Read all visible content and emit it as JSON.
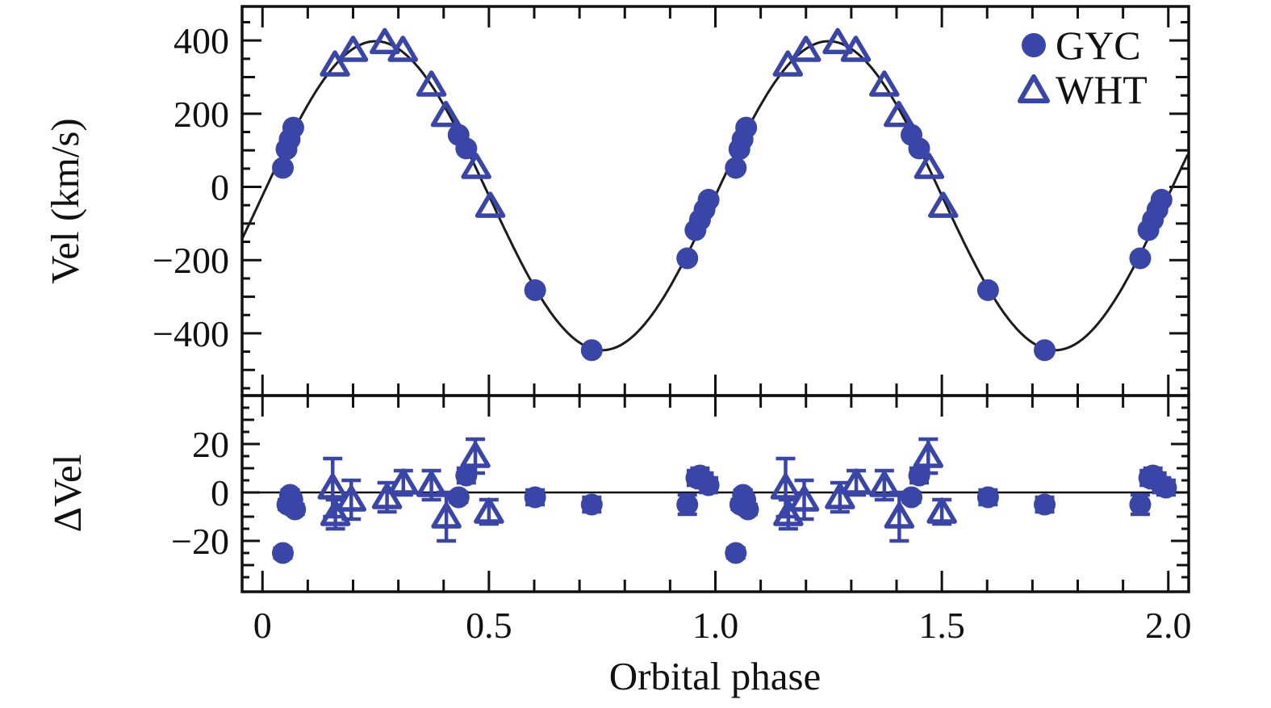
{
  "chart_data": {
    "type": "scatter",
    "description": "Radial velocity curve vs orbital phase with sinusoidal fit (top panel) and fit residuals (bottom panel)",
    "xlabel": "Orbital phase",
    "xlim": [
      -0.045,
      2.045
    ],
    "xticks": [
      {
        "v": 0,
        "label": "0"
      },
      {
        "v": 0.5,
        "label": "0.5"
      },
      {
        "v": 1.0,
        "label": "1.0"
      },
      {
        "v": 1.5,
        "label": "1.5"
      },
      {
        "v": 2.0,
        "label": "2.0"
      }
    ],
    "x_minor_step": 0.1,
    "x_major_step": 0.5,
    "grid": false,
    "legend_position": "top-right",
    "colors": {
      "marker": "#3a45a8",
      "curve": "#1c1c1c",
      "frame": "#111111"
    },
    "panels": [
      {
        "id": "velocity",
        "ylabel": "Vel (km/s)",
        "ylim": [
          -570,
          493
        ],
        "yticks": [
          {
            "v": 400,
            "label": "400"
          },
          {
            "v": 200,
            "label": "200"
          },
          {
            "v": 0,
            "label": "0"
          },
          {
            "v": -200,
            "label": "−200"
          },
          {
            "v": -400,
            "label": "−400"
          }
        ],
        "y_minor_step": 50,
        "y_medium_step": 100,
        "y_major_step": 200
      },
      {
        "id": "residuals",
        "ylabel": "ΔVel",
        "ylim": [
          -41,
          40
        ],
        "yticks": [
          {
            "v": 20,
            "label": "20"
          },
          {
            "v": 0,
            "label": "0"
          },
          {
            "v": -20,
            "label": "−20"
          }
        ],
        "y_minor_step": 5,
        "y_medium_step": 10,
        "y_major_step": 20,
        "zero_line": true
      }
    ],
    "fit_curve": {
      "model": "V = gamma + K * sin(2*pi*phase)",
      "gamma_kms": -24,
      "K_kms": 422
    },
    "series": [
      {
        "name": "GYC",
        "marker": "filled-circle",
        "color": "#3a45a8",
        "velocity_points": [
          [
            0.045,
            52
          ],
          [
            0.053,
            103
          ],
          [
            0.06,
            130
          ],
          [
            0.068,
            162
          ],
          [
            0.433,
            142
          ],
          [
            0.45,
            105
          ],
          [
            0.602,
            -282
          ],
          [
            0.727,
            -446
          ],
          [
            0.938,
            -195
          ],
          [
            0.956,
            -118
          ],
          [
            0.966,
            -90
          ],
          [
            0.976,
            -62
          ],
          [
            0.985,
            -35
          ],
          [
            1.045,
            52
          ],
          [
            1.053,
            103
          ],
          [
            1.06,
            130
          ],
          [
            1.068,
            162
          ],
          [
            1.433,
            142
          ],
          [
            1.45,
            105
          ],
          [
            1.602,
            -282
          ],
          [
            1.727,
            -446
          ],
          [
            1.938,
            -195
          ],
          [
            1.956,
            -118
          ],
          [
            1.966,
            -90
          ],
          [
            1.976,
            -62
          ],
          [
            1.985,
            -35
          ]
        ],
        "residual_points": [
          [
            0.045,
            -25,
            2
          ],
          [
            0.055,
            -5,
            2
          ],
          [
            0.061,
            -1,
            2
          ],
          [
            0.066,
            -3,
            2
          ],
          [
            0.072,
            -7,
            2
          ],
          [
            0.433,
            -2,
            2
          ],
          [
            0.45,
            7,
            3
          ],
          [
            0.602,
            -2,
            3
          ],
          [
            0.727,
            -5,
            3
          ],
          [
            0.938,
            -5,
            4
          ],
          [
            0.958,
            6,
            3
          ],
          [
            0.966,
            7,
            3
          ],
          [
            0.975,
            5,
            3
          ],
          [
            0.985,
            3,
            3
          ],
          [
            1.045,
            -25,
            2
          ],
          [
            1.055,
            -5,
            2
          ],
          [
            1.061,
            -1,
            2
          ],
          [
            1.066,
            -3,
            2
          ],
          [
            1.072,
            -7,
            2
          ],
          [
            1.433,
            -2,
            2
          ],
          [
            1.45,
            7,
            3
          ],
          [
            1.602,
            -2,
            3
          ],
          [
            1.727,
            -5,
            3
          ],
          [
            1.938,
            -5,
            4
          ],
          [
            1.958,
            6,
            3
          ],
          [
            1.966,
            7,
            3
          ],
          [
            1.975,
            5,
            3
          ],
          [
            1.985,
            3,
            3
          ],
          [
            1.995,
            2,
            3
          ]
        ]
      },
      {
        "name": "WHT",
        "marker": "open-triangle",
        "color": "#3a45a8",
        "velocity_points": [
          [
            0.16,
            334
          ],
          [
            0.2,
            374
          ],
          [
            0.27,
            395
          ],
          [
            0.31,
            374
          ],
          [
            0.373,
            279
          ],
          [
            0.405,
            196
          ],
          [
            0.472,
            54
          ],
          [
            0.503,
            -52
          ],
          [
            1.16,
            334
          ],
          [
            1.2,
            374
          ],
          [
            1.27,
            395
          ],
          [
            1.31,
            374
          ],
          [
            1.373,
            279
          ],
          [
            1.405,
            196
          ],
          [
            1.472,
            54
          ],
          [
            1.503,
            -52
          ]
        ],
        "residual_points": [
          [
            0.155,
            2,
            12
          ],
          [
            0.161,
            -9,
            6
          ],
          [
            0.196,
            -3,
            8
          ],
          [
            0.275,
            -2,
            6
          ],
          [
            0.311,
            4,
            5
          ],
          [
            0.373,
            3,
            6
          ],
          [
            0.406,
            -10,
            10
          ],
          [
            0.47,
            15,
            7
          ],
          [
            0.5,
            -8,
            5
          ],
          [
            1.155,
            2,
            12
          ],
          [
            1.161,
            -9,
            6
          ],
          [
            1.196,
            -3,
            8
          ],
          [
            1.275,
            -2,
            6
          ],
          [
            1.311,
            4,
            5
          ],
          [
            1.373,
            3,
            6
          ],
          [
            1.406,
            -10,
            10
          ],
          [
            1.47,
            15,
            7
          ],
          [
            1.5,
            -8,
            5
          ]
        ]
      }
    ]
  }
}
